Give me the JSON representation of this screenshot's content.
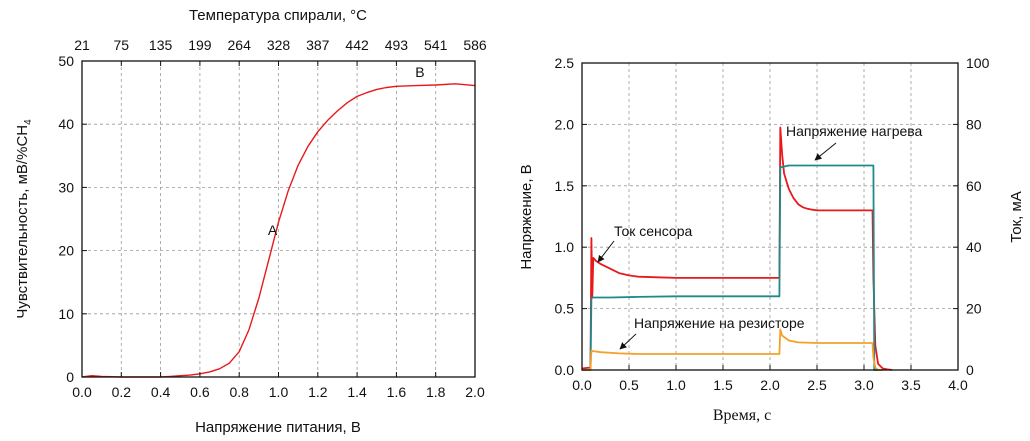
{
  "chart_data": [
    {
      "type": "line",
      "xlabel": "Напряжение питания, В",
      "ylabel": "Чувствительность, мВ/%CH",
      "ylabel_sub": "4",
      "x2label": "Температура спирали, °C",
      "xlim": [
        0,
        2.0
      ],
      "ylim": [
        0,
        50
      ],
      "x_ticks": [
        "0.0",
        "0.2",
        "0.4",
        "0.6",
        "0.8",
        "1.0",
        "1.2",
        "1.4",
        "1.6",
        "1.8",
        "2.0"
      ],
      "y_ticks": [
        "0",
        "10",
        "20",
        "30",
        "40",
        "50"
      ],
      "x2_ticks": [
        {
          "x": 0.0,
          "label": "21"
        },
        {
          "x": 0.2,
          "label": "75"
        },
        {
          "x": 0.4,
          "label": "135"
        },
        {
          "x": 0.6,
          "label": "199"
        },
        {
          "x": 0.8,
          "label": "264"
        },
        {
          "x": 1.0,
          "label": "328"
        },
        {
          "x": 1.2,
          "label": "387"
        },
        {
          "x": 1.4,
          "label": "442"
        },
        {
          "x": 1.6,
          "label": "493"
        },
        {
          "x": 1.8,
          "label": "541"
        },
        {
          "x": 2.0,
          "label": "586"
        }
      ],
      "grid": true,
      "series": [
        {
          "color": "#e8191b",
          "x": [
            0.0,
            0.05,
            0.1,
            0.2,
            0.3,
            0.4,
            0.45,
            0.5,
            0.55,
            0.6,
            0.65,
            0.7,
            0.75,
            0.8,
            0.85,
            0.9,
            0.95,
            1.0,
            1.05,
            1.1,
            1.15,
            1.2,
            1.25,
            1.3,
            1.35,
            1.4,
            1.45,
            1.5,
            1.55,
            1.6,
            1.7,
            1.8,
            1.9,
            2.0
          ],
          "y": [
            0.0,
            0.2,
            0.1,
            0.0,
            0.0,
            0.0,
            0.1,
            0.2,
            0.3,
            0.5,
            0.8,
            1.3,
            2.2,
            4.0,
            7.5,
            12.5,
            18.5,
            24.5,
            29.5,
            33.5,
            36.5,
            38.8,
            40.6,
            42.1,
            43.4,
            44.4,
            45.0,
            45.5,
            45.8,
            46.0,
            46.1,
            46.2,
            46.4,
            46.1
          ]
        }
      ],
      "annotations": [
        {
          "text": "A",
          "x": 0.97,
          "y": 22.5
        },
        {
          "text": "B",
          "x": 1.72,
          "y": 47.5
        }
      ]
    },
    {
      "type": "line",
      "xlabel": "Время, с",
      "ylabel": "Напряжение, В",
      "y2label": "Ток, мА",
      "xlim": [
        0,
        4.0
      ],
      "ylim": [
        0,
        2.5
      ],
      "y2lim": [
        0,
        100
      ],
      "x_ticks": [
        "0.0",
        "0.5",
        "1.0",
        "1.5",
        "2.0",
        "2.5",
        "3.0",
        "3.5",
        "4.0"
      ],
      "y_ticks": [
        "0.0",
        "0.5",
        "1.0",
        "1.5",
        "2.0",
        "2.5"
      ],
      "y2_ticks": [
        "0",
        "20",
        "40",
        "60",
        "80",
        "100"
      ],
      "grid": true,
      "series": [
        {
          "name": "Ток сенсора",
          "color": "#e8191b",
          "axis": "right",
          "x": [
            0.0,
            0.09,
            0.1,
            0.11,
            0.12,
            0.15,
            0.2,
            0.3,
            0.4,
            0.5,
            0.6,
            0.8,
            1.0,
            1.5,
            2.09,
            2.1,
            2.11,
            2.13,
            2.15,
            2.2,
            2.25,
            2.3,
            2.35,
            2.4,
            2.45,
            2.5,
            2.6,
            3.08,
            3.09,
            3.1,
            3.12,
            3.15,
            3.2,
            3.25,
            3.3
          ],
          "y": [
            0.5,
            0.8,
            43,
            24,
            36.5,
            35.5,
            34.5,
            33,
            31.5,
            30.8,
            30.4,
            30.2,
            30.0,
            30.0,
            30.0,
            30,
            79,
            70,
            64,
            59,
            56,
            54,
            53,
            52.5,
            52.2,
            52,
            52,
            52,
            52,
            30,
            8,
            2,
            0.5,
            0.2,
            0
          ]
        },
        {
          "name": "Напряжение нагрева",
          "color": "#1f8a8a",
          "axis": "left",
          "x": [
            0.0,
            0.09,
            0.1,
            0.11,
            0.3,
            0.6,
            1.0,
            2.09,
            2.1,
            2.11,
            2.2,
            2.5,
            3.09,
            3.1,
            3.11,
            3.2
          ],
          "y": [
            0.0,
            0.0,
            0.58,
            0.59,
            0.59,
            0.595,
            0.6,
            0.6,
            0.6,
            1.65,
            1.665,
            1.665,
            1.665,
            1.665,
            0.0,
            0.0
          ]
        },
        {
          "name": "Напряжение на резисторе",
          "color": "#f5a02a",
          "axis": "left",
          "x": [
            0.0,
            0.09,
            0.1,
            0.11,
            0.2,
            0.4,
            0.6,
            1.0,
            2.09,
            2.1,
            2.11,
            2.13,
            2.2,
            2.3,
            2.5,
            3.09,
            3.1,
            3.12,
            3.15,
            3.2
          ],
          "y": [
            0.0,
            0.0,
            0.16,
            0.155,
            0.145,
            0.135,
            0.13,
            0.13,
            0.13,
            0.13,
            0.33,
            0.28,
            0.24,
            0.225,
            0.22,
            0.22,
            0.1,
            0.02,
            0.0,
            0.0
          ]
        }
      ],
      "annotations": [
        {
          "text": "Напряжение нагрева",
          "series": "Напряжение нагрева"
        },
        {
          "text": "Ток сенсора",
          "series": "Ток сенсора"
        },
        {
          "text": "Напряжение на резисторе",
          "series": "Напряжение на резисторе"
        }
      ]
    }
  ]
}
